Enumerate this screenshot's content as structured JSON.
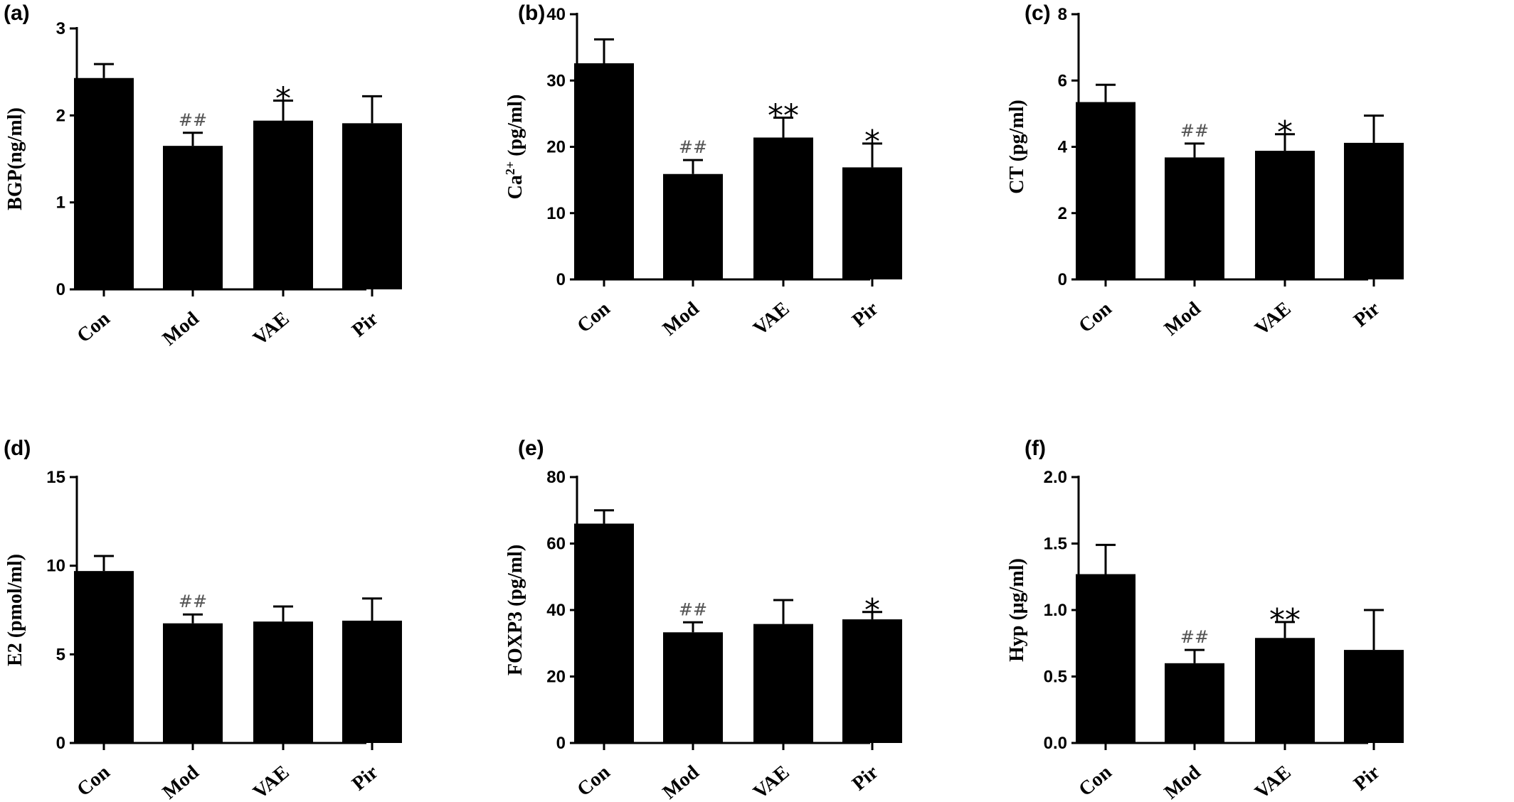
{
  "chart_data": [
    {
      "type": "bar",
      "panel": "(a)",
      "ylabel": "BGP(ng/ml)",
      "ylabel_sup": "",
      "ylabel_post": "",
      "ylim": [
        0,
        3
      ],
      "yticks": [
        0,
        1,
        2,
        3
      ],
      "ytick_labels": [
        "0",
        "1",
        "2",
        "3"
      ],
      "categories": [
        "Con",
        "Mod",
        "VAE",
        "Pir"
      ],
      "values": [
        2.43,
        1.65,
        1.94,
        1.91
      ],
      "errors": [
        0.16,
        0.15,
        0.23,
        0.31
      ],
      "annotations": [
        "",
        "##",
        "*",
        ""
      ]
    },
    {
      "type": "bar",
      "panel": "(b)",
      "ylabel": "Ca",
      "ylabel_sup": "2+",
      "ylabel_post": " (pg/ml)",
      "ylim": [
        0,
        40
      ],
      "yticks": [
        0,
        10,
        20,
        30,
        40
      ],
      "ytick_labels": [
        "0",
        "10",
        "20",
        "30",
        "40"
      ],
      "categories": [
        "Con",
        "Mod",
        "VAE",
        "Pir"
      ],
      "values": [
        32.6,
        15.9,
        21.4,
        16.9
      ],
      "errors": [
        3.6,
        2.1,
        3.0,
        3.6
      ],
      "annotations": [
        "",
        "##",
        "**",
        "*"
      ]
    },
    {
      "type": "bar",
      "panel": "(c)",
      "ylabel": "CT (pg/ml)",
      "ylabel_sup": "",
      "ylabel_post": "",
      "ylim": [
        0,
        8
      ],
      "yticks": [
        0,
        2,
        4,
        6,
        8
      ],
      "ytick_labels": [
        "0",
        "2",
        "4",
        "6",
        "8"
      ],
      "categories": [
        "Con",
        "Mod",
        "VAE",
        "Pir"
      ],
      "values": [
        5.35,
        3.68,
        3.88,
        4.12
      ],
      "errors": [
        0.52,
        0.42,
        0.5,
        0.82
      ],
      "annotations": [
        "",
        "##",
        "*",
        ""
      ]
    },
    {
      "type": "bar",
      "panel": "(d)",
      "ylabel": "E2 (pmol/ml)",
      "ylabel_sup": "",
      "ylabel_post": "",
      "ylim": [
        0,
        15
      ],
      "yticks": [
        0,
        5,
        10,
        15
      ],
      "ytick_labels": [
        "0",
        "5",
        "10",
        "15"
      ],
      "categories": [
        "Con",
        "Mod",
        "VAE",
        "Pir"
      ],
      "values": [
        9.7,
        6.75,
        6.85,
        6.9
      ],
      "errors": [
        0.85,
        0.5,
        0.85,
        1.25
      ],
      "annotations": [
        "",
        "##",
        "",
        ""
      ]
    },
    {
      "type": "bar",
      "panel": "(e)",
      "ylabel": "FOXP3 (pg/ml)",
      "ylabel_sup": "",
      "ylabel_post": "",
      "ylim": [
        0,
        80
      ],
      "yticks": [
        0,
        20,
        40,
        60,
        80
      ],
      "ytick_labels": [
        "0",
        "20",
        "40",
        "60",
        "80"
      ],
      "categories": [
        "Con",
        "Mod",
        "VAE",
        "Pir"
      ],
      "values": [
        66,
        33.3,
        35.8,
        37.2
      ],
      "errors": [
        4.0,
        3.0,
        7.2,
        2.2
      ],
      "annotations": [
        "",
        "##",
        "",
        "*"
      ]
    },
    {
      "type": "bar",
      "panel": "(f)",
      "ylabel": "Hyp (μg/ml)",
      "ylabel_sup": "",
      "ylabel_post": "",
      "ylim": [
        0,
        2.0
      ],
      "yticks": [
        0,
        0.5,
        1.0,
        1.5,
        2.0
      ],
      "ytick_labels": [
        "0.0",
        "0.5",
        "1.0",
        "1.5",
        "2.0"
      ],
      "categories": [
        "Con",
        "Mod",
        "VAE",
        "Pir"
      ],
      "values": [
        1.27,
        0.6,
        0.79,
        0.7
      ],
      "errors": [
        0.22,
        0.1,
        0.12,
        0.3
      ],
      "annotations": [
        "",
        "##",
        "**",
        ""
      ]
    }
  ]
}
